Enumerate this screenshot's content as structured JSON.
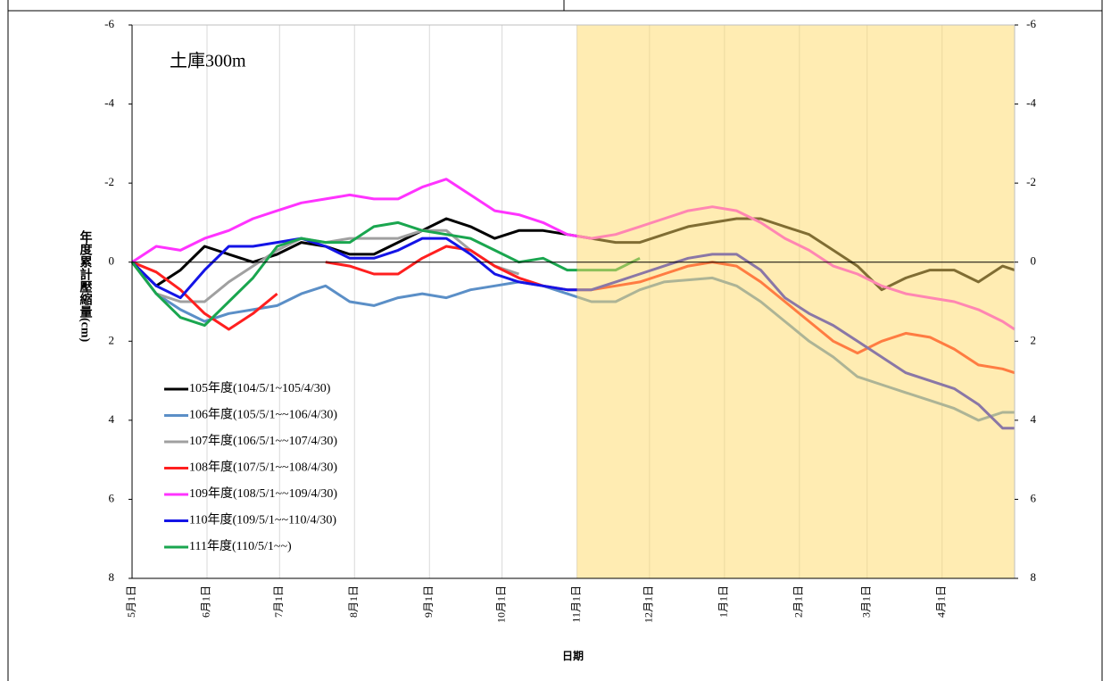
{
  "chart_data": {
    "type": "line",
    "annotation": "土庫300m",
    "x_label": "日期",
    "y_label": "年度累計壓縮量(cm)",
    "x": [
      0,
      10,
      20,
      30,
      40,
      50,
      60,
      70,
      80,
      90,
      100,
      110,
      120,
      130,
      140,
      150,
      160,
      170,
      180,
      190,
      200,
      210,
      220,
      230,
      240,
      250,
      260,
      270,
      280,
      290,
      300,
      310,
      320,
      330,
      340,
      350,
      360,
      365
    ],
    "xlim": [
      0,
      365
    ],
    "xticks": [
      {
        "value": 0,
        "label": "5月1日"
      },
      {
        "value": 31,
        "label": "6月1日"
      },
      {
        "value": 61,
        "label": "7月1日"
      },
      {
        "value": 92,
        "label": "8月1日"
      },
      {
        "value": 123,
        "label": "9月1日"
      },
      {
        "value": 153,
        "label": "10月1日"
      },
      {
        "value": 184,
        "label": "11月1日"
      },
      {
        "value": 214,
        "label": "12月1日"
      },
      {
        "value": 245,
        "label": "1月1日"
      },
      {
        "value": 276,
        "label": "2月1日"
      },
      {
        "value": 304,
        "label": "3月1日"
      },
      {
        "value": 335,
        "label": "4月1日"
      }
    ],
    "ylim": [
      8,
      -6
    ],
    "yticks": [
      -6,
      -4,
      -2,
      0,
      2,
      4,
      6,
      8
    ],
    "y2lim": [
      8,
      -6
    ],
    "y2ticks": [
      -6,
      -4,
      -2,
      0,
      2,
      4,
      6,
      8
    ],
    "negative_tick_color": "#ff0000",
    "grid": true,
    "highlight": {
      "from": 184,
      "to": 365,
      "color": "#ffd966"
    },
    "series": [
      {
        "name": "105年度(104/5/1~105/4/30)",
        "color": "#000000",
        "values": [
          0,
          0.6,
          0.2,
          -0.4,
          -0.2,
          0,
          -0.2,
          -0.5,
          -0.4,
          -0.2,
          -0.2,
          -0.5,
          -0.8,
          -1.1,
          -0.9,
          -0.6,
          -0.8,
          -0.8,
          -0.7,
          -0.6,
          -0.5,
          -0.5,
          -0.7,
          -0.9,
          -1.0,
          -1.1,
          -1.1,
          -0.9,
          -0.7,
          -0.3,
          0.1,
          0.7,
          0.4,
          0.2,
          0.2,
          0.5,
          0.1,
          0.2
        ]
      },
      {
        "name": "106年度(105/5/1~~106/4/30)",
        "color": "#5b8fc7",
        "values": [
          0,
          0.8,
          1.2,
          1.5,
          1.3,
          1.2,
          1.1,
          0.8,
          0.6,
          1.0,
          1.1,
          0.9,
          0.8,
          0.9,
          0.7,
          0.6,
          0.5,
          0.6,
          0.8,
          1.0,
          1.0,
          0.7,
          0.5,
          0.45,
          0.4,
          0.6,
          1.0,
          1.5,
          2.0,
          2.4,
          2.9,
          3.1,
          3.3,
          3.5,
          3.7,
          4.0,
          3.8,
          3.8
        ]
      },
      {
        "name": "107年度(106/5/1~~107/4/30)",
        "color": "#a0a0a0",
        "values": [
          0,
          0.8,
          1.0,
          1.0,
          0.5,
          0.1,
          -0.3,
          -0.6,
          -0.5,
          -0.6,
          -0.6,
          -0.6,
          -0.8,
          -0.8,
          -0.3,
          0.1,
          0.3,
          null,
          null,
          null,
          null,
          null,
          null,
          null,
          null,
          null,
          null,
          null,
          null,
          null,
          null,
          null,
          null,
          null,
          null,
          null,
          null,
          null
        ]
      },
      {
        "name": "108年度(107/5/1~~108/4/30)",
        "color": "#ff1f1f",
        "values": [
          0,
          0.25,
          0.7,
          1.3,
          1.7,
          1.3,
          0.8,
          null,
          0.0,
          0.1,
          0.3,
          0.3,
          -0.1,
          -0.4,
          -0.3,
          0.1,
          0.4,
          0.6,
          0.7,
          0.7,
          0.6,
          0.5,
          0.3,
          0.1,
          0.0,
          0.1,
          0.5,
          1.0,
          1.5,
          2.0,
          2.3,
          2.0,
          1.8,
          1.9,
          2.2,
          2.6,
          2.7,
          2.8
        ]
      },
      {
        "name": "109年度(108/5/1~~109/4/30)",
        "color": "#ff33ff",
        "values": [
          0,
          -0.4,
          -0.3,
          -0.6,
          -0.8,
          -1.1,
          -1.3,
          -1.5,
          -1.6,
          -1.7,
          -1.6,
          -1.6,
          -1.9,
          -2.1,
          -1.7,
          -1.3,
          -1.2,
          -1.0,
          -0.7,
          -0.6,
          -0.7,
          -0.9,
          -1.1,
          -1.3,
          -1.4,
          -1.3,
          -1.0,
          -0.6,
          -0.3,
          0.1,
          0.3,
          0.6,
          0.8,
          0.9,
          1.0,
          1.2,
          1.5,
          1.7
        ]
      },
      {
        "name": "110年度(109/5/1~~110/4/30)",
        "color": "#1414e6",
        "values": [
          0,
          0.6,
          0.9,
          0.2,
          -0.4,
          -0.4,
          -0.5,
          -0.6,
          -0.4,
          -0.1,
          -0.1,
          -0.3,
          -0.6,
          -0.6,
          -0.2,
          0.3,
          0.5,
          0.6,
          0.7,
          0.7,
          0.5,
          0.3,
          0.1,
          -0.1,
          -0.2,
          -0.2,
          0.2,
          0.9,
          1.3,
          1.6,
          2.0,
          2.4,
          2.8,
          3.0,
          3.2,
          3.6,
          4.2,
          4.2
        ]
      },
      {
        "name": "111年度(110/5/1~~)",
        "color": "#1aa64f",
        "values": [
          0,
          0.8,
          1.4,
          1.6,
          1.0,
          0.4,
          -0.4,
          -0.6,
          -0.5,
          -0.5,
          -0.9,
          -1.0,
          -0.8,
          -0.7,
          -0.6,
          -0.3,
          0.0,
          -0.1,
          0.2,
          0.2,
          0.2,
          -0.1,
          null,
          null,
          null,
          null,
          null,
          null,
          null,
          null,
          null,
          null,
          null,
          null,
          null,
          null,
          null,
          null
        ]
      }
    ]
  }
}
